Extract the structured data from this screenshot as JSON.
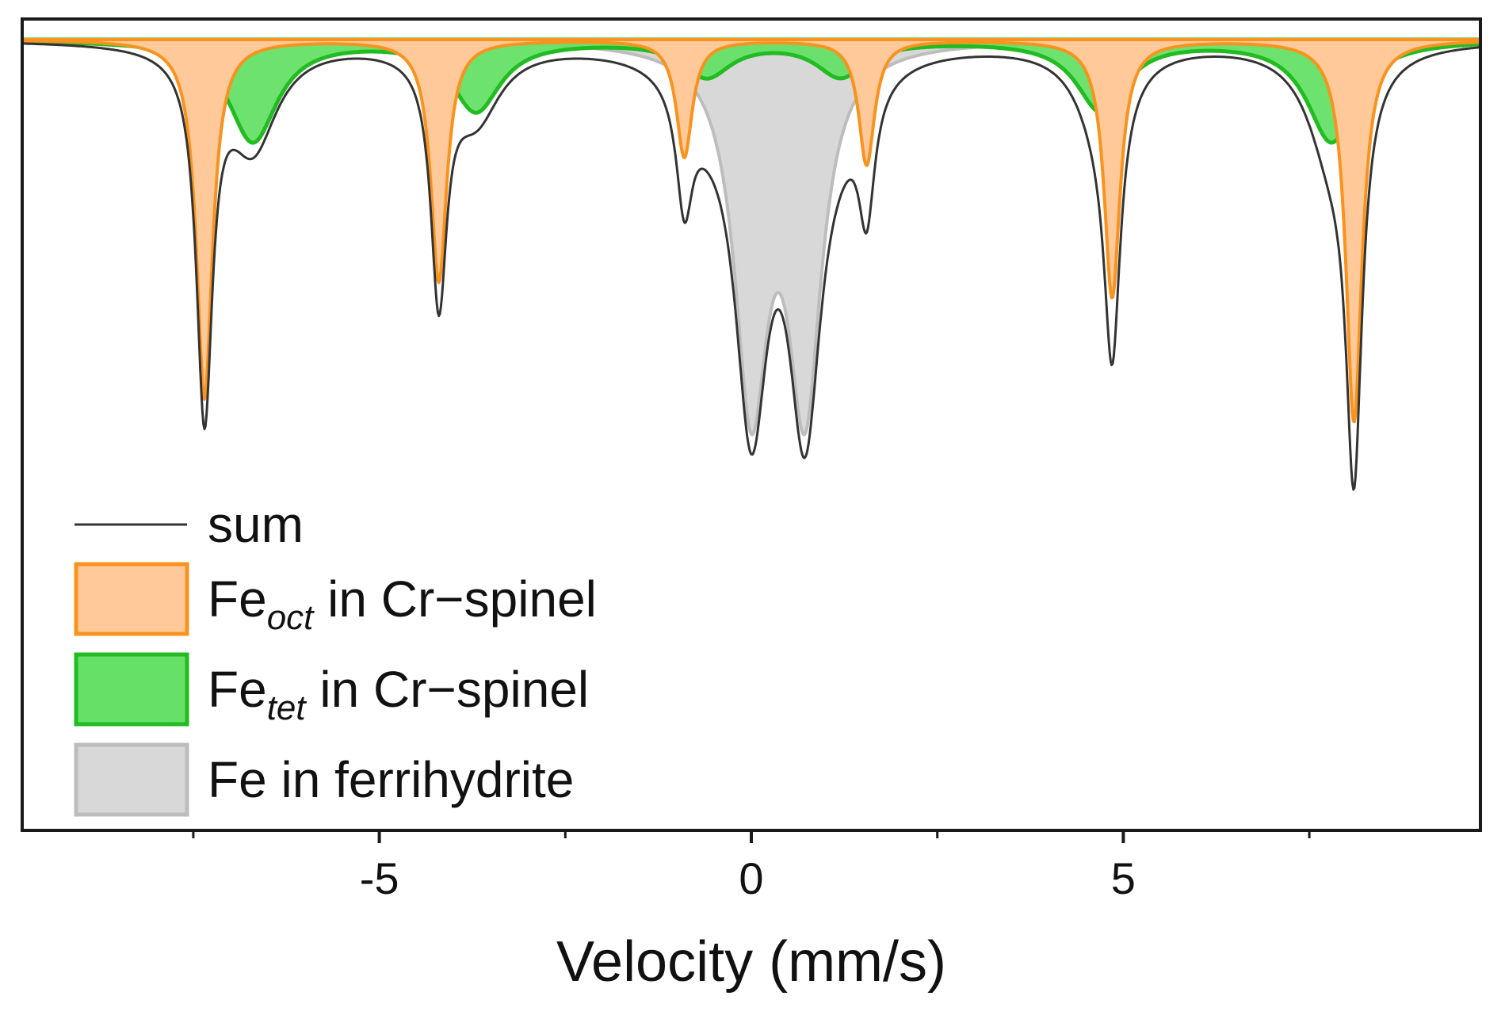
{
  "chart_data": {
    "type": "area",
    "title": "",
    "xlabel": "Velocity (mm/s)",
    "ylabel": "",
    "xlim": [
      -9.8,
      9.8
    ],
    "ylim": [
      -1.0,
      0.0
    ],
    "xticks": [
      -5,
      0,
      5
    ],
    "xtick_labels": [
      "-5",
      "0",
      "5"
    ],
    "minor_xticks": [
      -7.5,
      -2.5,
      2.5,
      7.5
    ],
    "grid": false,
    "legend_position": "bottom-left",
    "series": [
      {
        "name": "sum",
        "kind": "line",
        "color": "#333333",
        "description": "sum of all subspectra"
      },
      {
        "name": "Fe_oct in Cr-spinel",
        "kind": "fill",
        "fill": "#FFC999",
        "stroke": "#F7931E",
        "lines_mm_s": [
          -7.35,
          -4.2,
          -0.9,
          1.55,
          4.85,
          8.1
        ],
        "depths": [
          0.46,
          0.31,
          0.15,
          0.16,
          0.33,
          0.49
        ],
        "width_mm_s": 0.13
      },
      {
        "name": "Fe_tet in Cr-spinel",
        "kind": "fill",
        "fill": "#66E066",
        "stroke": "#22BB22",
        "lines_mm_s": [
          -6.7,
          -3.7,
          -0.6,
          1.2,
          4.7,
          7.8
        ],
        "depths": [
          0.13,
          0.09,
          0.045,
          0.045,
          0.09,
          0.13
        ],
        "width_mm_s": 0.4
      },
      {
        "name": "Fe in ferrihydrite",
        "kind": "fill",
        "fill": "#D8D8D8",
        "stroke": "#BDBDBD",
        "lines_mm_s": [
          0.0,
          0.72
        ],
        "depths": [
          0.45,
          0.45
        ],
        "width_mm_s": 0.27
      }
    ]
  },
  "legend": {
    "sum_label": "sum",
    "oct_prefix": "Fe",
    "oct_sub": "oct",
    "oct_suffix": " in Cr−spinel",
    "tet_prefix": "Fe",
    "tet_sub": "tet",
    "tet_suffix": " in Cr−spinel",
    "ferri_label": "Fe in ferrihydrite"
  }
}
